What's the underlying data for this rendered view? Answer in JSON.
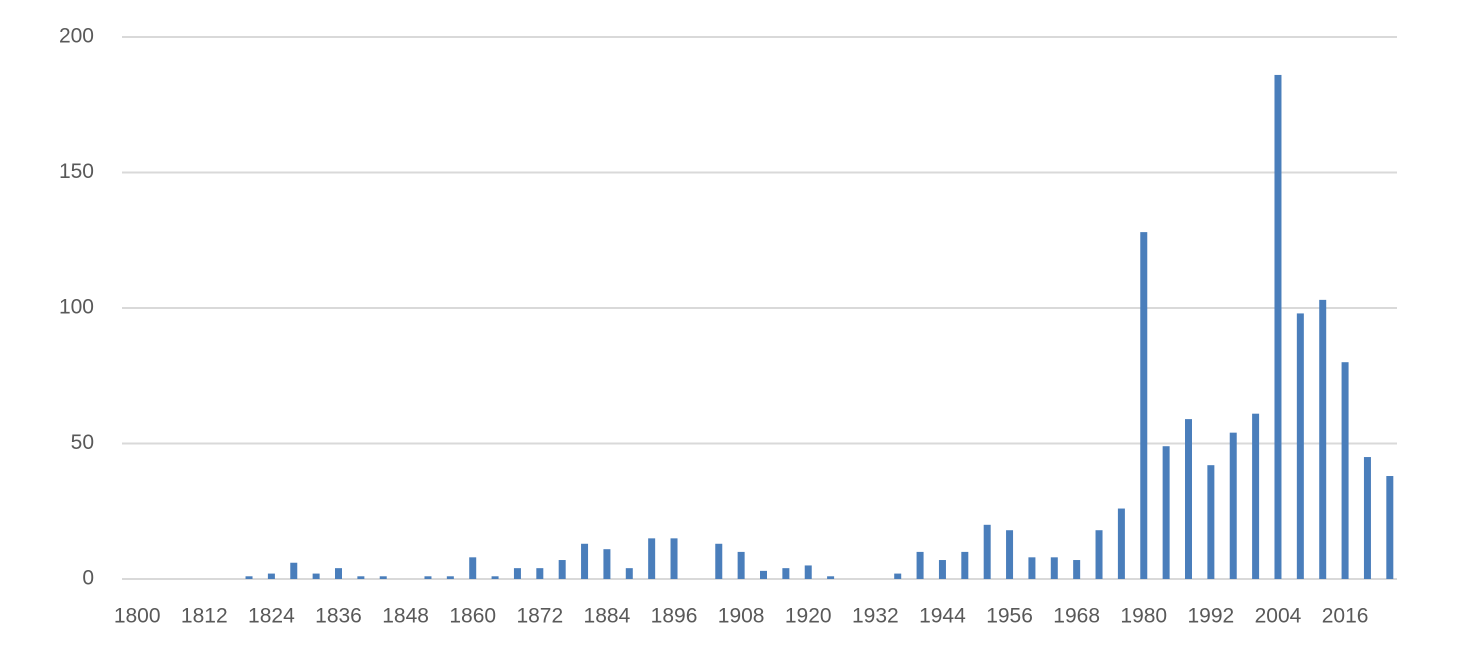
{
  "chart_data": {
    "type": "bar",
    "categories": [
      "1800",
      null,
      null,
      "1812",
      null,
      null,
      "1824",
      null,
      null,
      "1836",
      null,
      null,
      "1848",
      null,
      null,
      "1860",
      null,
      null,
      "1872",
      null,
      null,
      "1884",
      null,
      null,
      "1896",
      null,
      null,
      "1908",
      null,
      null,
      "1920",
      null,
      null,
      "1932",
      null,
      null,
      "1944",
      null,
      null,
      "1956",
      null,
      null,
      "1968",
      null,
      null,
      "1980",
      null,
      null,
      "1992",
      null,
      null,
      "2004",
      null,
      null,
      "2016",
      null,
      null
    ],
    "values": [
      0,
      0,
      0,
      0,
      0,
      1,
      2,
      6,
      2,
      4,
      1,
      1,
      0,
      1,
      1,
      8,
      1,
      4,
      4,
      7,
      13,
      11,
      4,
      15,
      15,
      0,
      13,
      10,
      3,
      4,
      5,
      1,
      0,
      0,
      2,
      10,
      7,
      10,
      20,
      18,
      8,
      8,
      7,
      18,
      26,
      128,
      49,
      59,
      42,
      54,
      61,
      186,
      98,
      103,
      80,
      45,
      38
    ],
    "color": "#4a7ebb",
    "ylim": [
      0,
      200
    ],
    "yticks": [
      0,
      50,
      100,
      150,
      200
    ],
    "grid": true
  }
}
